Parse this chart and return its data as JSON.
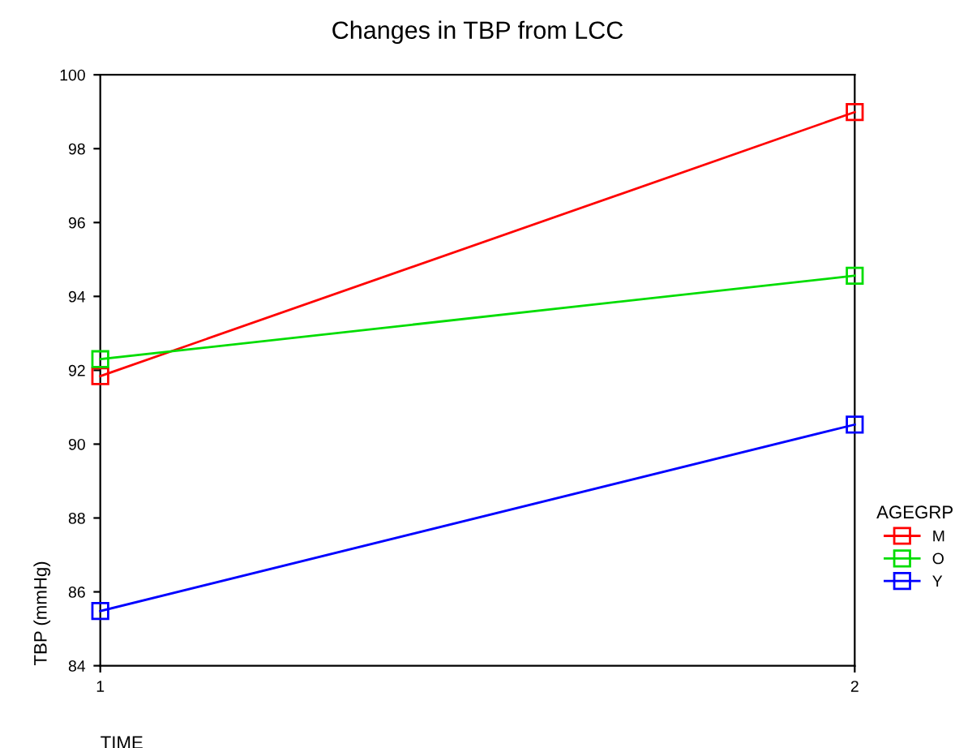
{
  "chart_data": {
    "type": "line",
    "title": "Changes in TBP from LCC",
    "xlabel": "TIME",
    "ylabel": "TBP (mmHg)",
    "legend_title": "AGEGRP",
    "x": [
      1,
      2
    ],
    "series": [
      {
        "name": "M",
        "color": "#ff0000",
        "values": [
          91.84,
          98.99
        ]
      },
      {
        "name": "O",
        "color": "#00dd00",
        "values": [
          92.3,
          94.56
        ]
      },
      {
        "name": "Y",
        "color": "#0000ff",
        "values": [
          85.48,
          90.53
        ]
      }
    ],
    "xlim": [
      1,
      2
    ],
    "xticks": [
      1,
      2
    ],
    "ylim": [
      84,
      100
    ],
    "yticks": [
      84,
      86,
      88,
      90,
      92,
      94,
      96,
      98,
      100
    ],
    "marker": "square",
    "line_style": "solid",
    "legend": "right",
    "grid": false
  }
}
